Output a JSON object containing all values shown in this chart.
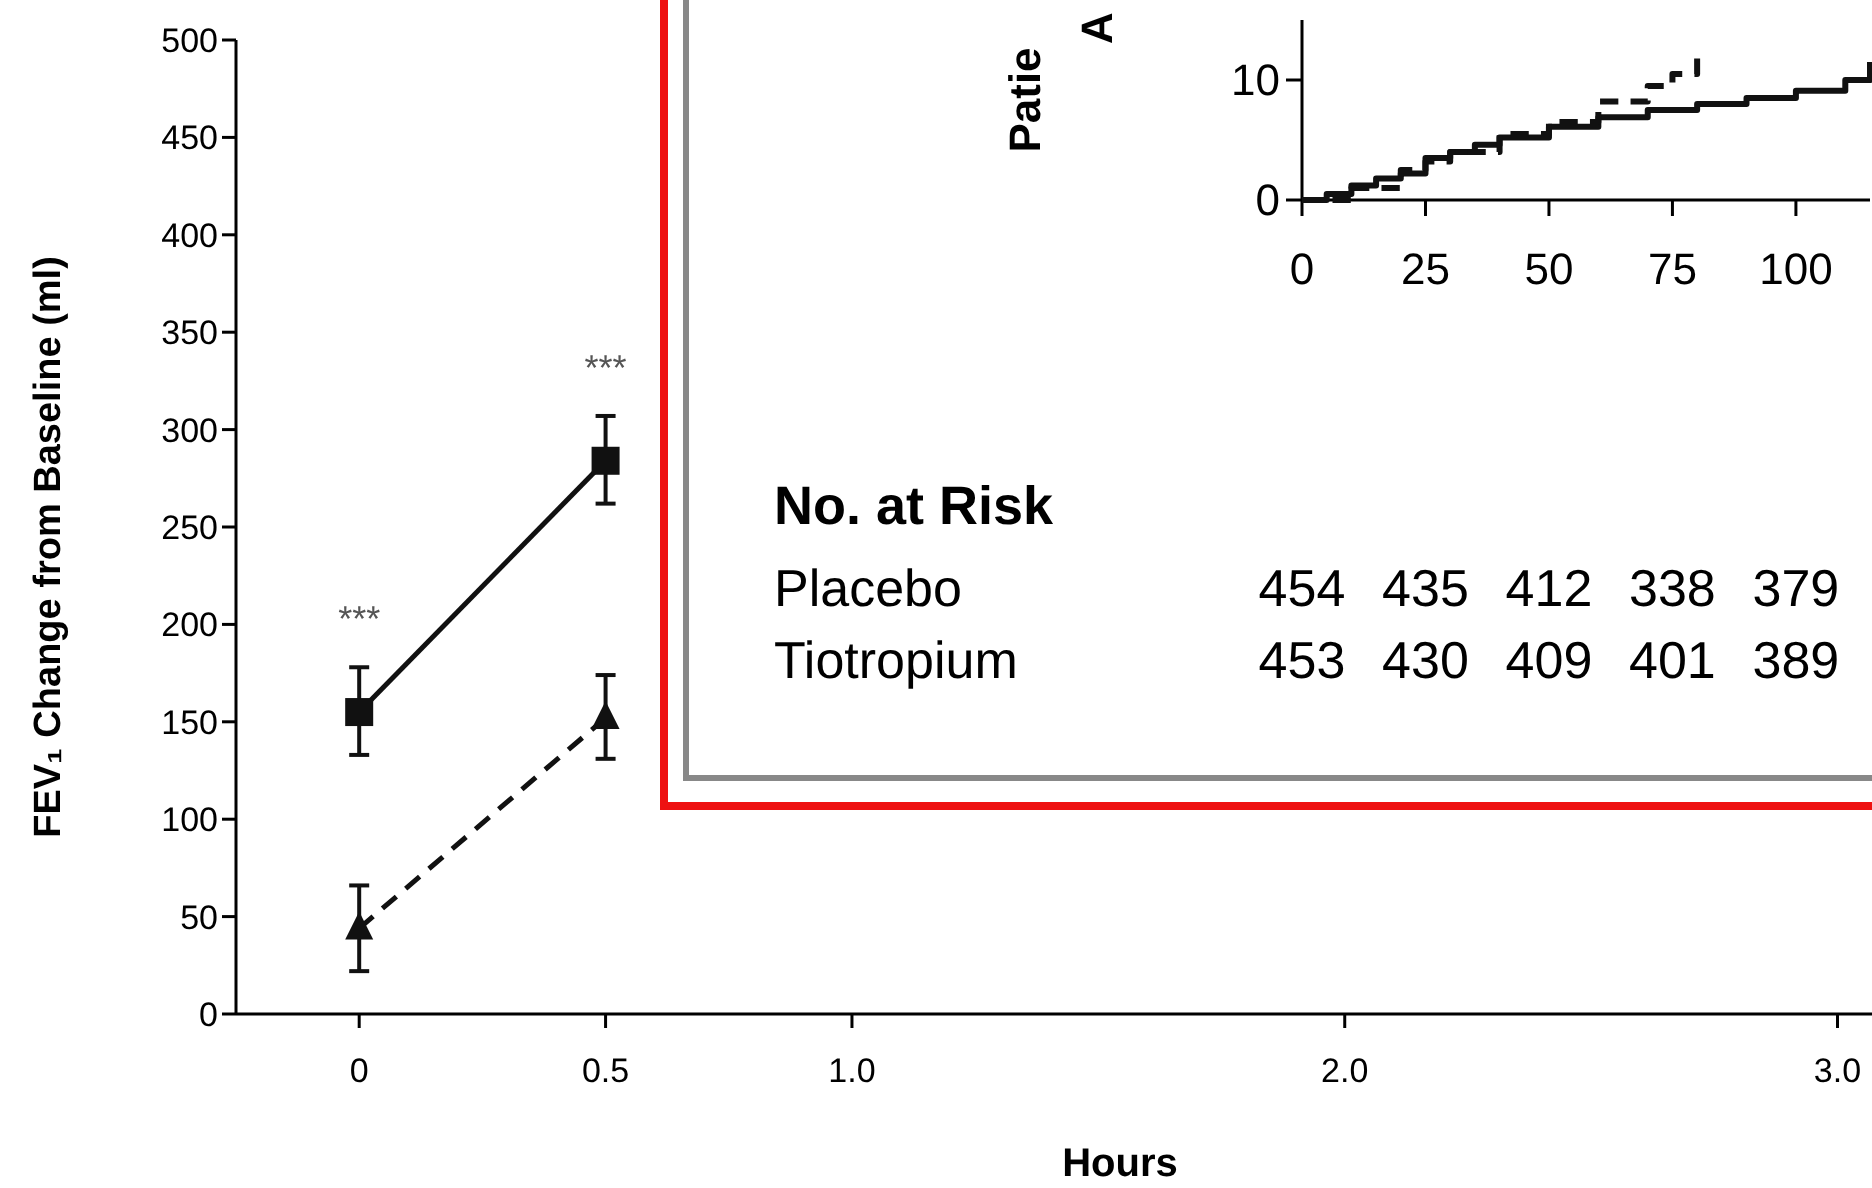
{
  "chart_data": [
    {
      "type": "line",
      "xlabel": "Hours",
      "ylabel": "FEV₁ Change from Baseline (ml)",
      "xlim": [
        -0.25,
        3.07
      ],
      "ylim": [
        0,
        500
      ],
      "xticks": [
        0,
        0.5,
        {
          "value": 1,
          "label": "1.0"
        },
        {
          "value": 2,
          "label": "2.0"
        },
        {
          "value": 3,
          "label": "3.0"
        }
      ],
      "yticks": [
        0,
        50,
        100,
        150,
        200,
        250,
        300,
        350,
        400,
        450,
        500
      ],
      "grid": false,
      "series": [
        {
          "color": "#111111",
          "x": [
            0,
            0.5
          ],
          "values": [
            155,
            284
          ],
          "errors": [
            [
              133,
              178
            ],
            [
              262,
              307
            ]
          ],
          "marker": "square",
          "line_style": "solid"
        },
        {
          "color": "#111111",
          "x": [
            0,
            0.5
          ],
          "values": [
            44,
            152
          ],
          "errors": [
            [
              22,
              66
            ],
            [
              131,
              174
            ]
          ],
          "marker": "triangle",
          "line_style": "dashed"
        }
      ],
      "annotations": [
        "***",
        "***"
      ]
    },
    {
      "type": "step",
      "ylabel": "Patie\nA",
      "xlim": [
        0,
        115
      ],
      "ylim": [
        0,
        15
      ],
      "xticks": [
        0,
        25,
        50,
        75,
        100
      ],
      "yticks": [
        0,
        10
      ],
      "grid": false,
      "series": [
        {
          "color": "#111111",
          "line_style": "solid",
          "x": [
            0,
            5,
            10,
            15,
            20,
            25,
            30,
            35,
            40,
            50,
            60,
            70,
            80,
            90,
            100,
            110,
            115
          ],
          "values": [
            0,
            0.5,
            1.2,
            1.8,
            2.2,
            3.5,
            4,
            4.6,
            5.2,
            6.1,
            6.9,
            7.5,
            8,
            8.5,
            9.1,
            10,
            11.5
          ]
        },
        {
          "color": "#111111",
          "line_style": "dashed",
          "x": [
            0,
            10,
            20,
            25,
            30,
            40,
            50,
            60,
            70,
            75,
            80
          ],
          "values": [
            0,
            1,
            2.5,
            3.2,
            4,
            5.5,
            6.5,
            8.2,
            9.5,
            10.5,
            11.8
          ]
        }
      ],
      "annotations": [
        "No. at Risk",
        "Placebo",
        "454",
        "435",
        "412",
        "338",
        "379",
        "Tiotropium",
        "453",
        "430",
        "409",
        "401",
        "389"
      ]
    }
  ]
}
